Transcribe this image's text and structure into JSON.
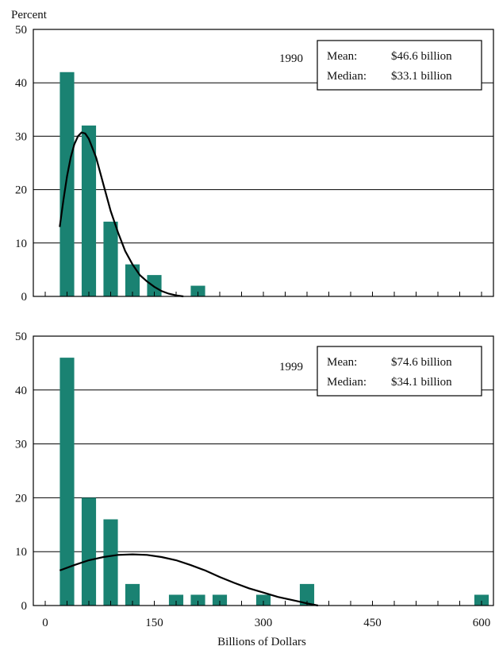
{
  "figure": {
    "ylabel": "Percent",
    "xlabel": "Billions of Dollars",
    "bar_color": "#1a8272",
    "curve_color": "#000000"
  },
  "chart_data": [
    {
      "type": "bar",
      "year": "1990",
      "ylim": [
        0,
        50
      ],
      "yticks": [
        "0",
        "10",
        "20",
        "30",
        "40",
        "50"
      ],
      "xlim": [
        0,
        600
      ],
      "bin_width": 30,
      "bins_x": [
        30,
        60,
        90,
        120,
        150,
        210
      ],
      "values": [
        42,
        32,
        14,
        6,
        4,
        2
      ],
      "stats": {
        "mean_label": "Mean:",
        "mean_value": "$46.6 billion",
        "median_label": "Median:",
        "median_value": "$33.1 billion"
      },
      "curve": [
        [
          20,
          13
        ],
        [
          25,
          18
        ],
        [
          30,
          22.5
        ],
        [
          35,
          26
        ],
        [
          40,
          28.5
        ],
        [
          45,
          30
        ],
        [
          50,
          30.7
        ],
        [
          55,
          30.5
        ],
        [
          60,
          29.5
        ],
        [
          70,
          26
        ],
        [
          80,
          21
        ],
        [
          90,
          16
        ],
        [
          100,
          12
        ],
        [
          110,
          8.5
        ],
        [
          120,
          6
        ],
        [
          130,
          4
        ],
        [
          140,
          2.8
        ],
        [
          150,
          1.8
        ],
        [
          160,
          1
        ],
        [
          170,
          0.5
        ],
        [
          180,
          0.2
        ],
        [
          190,
          0
        ]
      ]
    },
    {
      "type": "bar",
      "year": "1999",
      "ylim": [
        0,
        50
      ],
      "yticks": [
        "0",
        "10",
        "20",
        "30",
        "40",
        "50"
      ],
      "xlim": [
        0,
        600
      ],
      "xticks": [
        "0",
        "150",
        "300",
        "450",
        "600"
      ],
      "bin_width": 30,
      "bins_x": [
        30,
        60,
        90,
        120,
        180,
        210,
        240,
        300,
        360,
        600
      ],
      "values": [
        46,
        20,
        16,
        4,
        2,
        2,
        2,
        2,
        4,
        2
      ],
      "stats": {
        "mean_label": "Mean:",
        "mean_value": "$74.6 billion",
        "median_label": "Median:",
        "median_value": "$34.1 billion"
      },
      "curve": [
        [
          20,
          6.5
        ],
        [
          40,
          7.5
        ],
        [
          60,
          8.4
        ],
        [
          80,
          9
        ],
        [
          100,
          9.4
        ],
        [
          120,
          9.5
        ],
        [
          140,
          9.4
        ],
        [
          160,
          9
        ],
        [
          180,
          8.4
        ],
        [
          200,
          7.5
        ],
        [
          220,
          6.5
        ],
        [
          240,
          5.3
        ],
        [
          260,
          4.2
        ],
        [
          280,
          3.2
        ],
        [
          300,
          2.4
        ],
        [
          320,
          1.6
        ],
        [
          340,
          1
        ],
        [
          360,
          0.4
        ],
        [
          375,
          0
        ]
      ]
    }
  ]
}
